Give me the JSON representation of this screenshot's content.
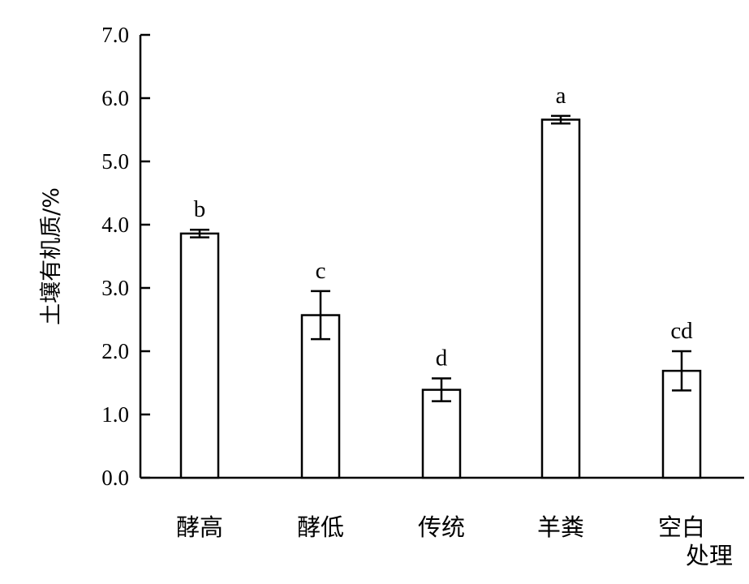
{
  "chart_data": {
    "type": "bar",
    "categories": [
      "酵高",
      "酵低",
      "传统",
      "羊粪",
      "空白"
    ],
    "values": [
      3.86,
      2.57,
      1.39,
      5.66,
      1.69
    ],
    "errors": [
      0.06,
      0.38,
      0.18,
      0.06,
      0.31
    ],
    "significance_letters": [
      "b",
      "c",
      "d",
      "a",
      "cd"
    ],
    "title": "",
    "xlabel": "处理",
    "ylabel": "土壤有机质/%",
    "ylim": [
      0,
      7
    ],
    "yticks": [
      "0.0",
      "1.0",
      "2.0",
      "3.0",
      "4.0",
      "5.0",
      "6.0",
      "7.0"
    ],
    "grid": false,
    "legend": "none",
    "colors": {
      "bar_fill": "#ffffff",
      "bar_stroke": "#000000",
      "axis": "#000000"
    }
  }
}
